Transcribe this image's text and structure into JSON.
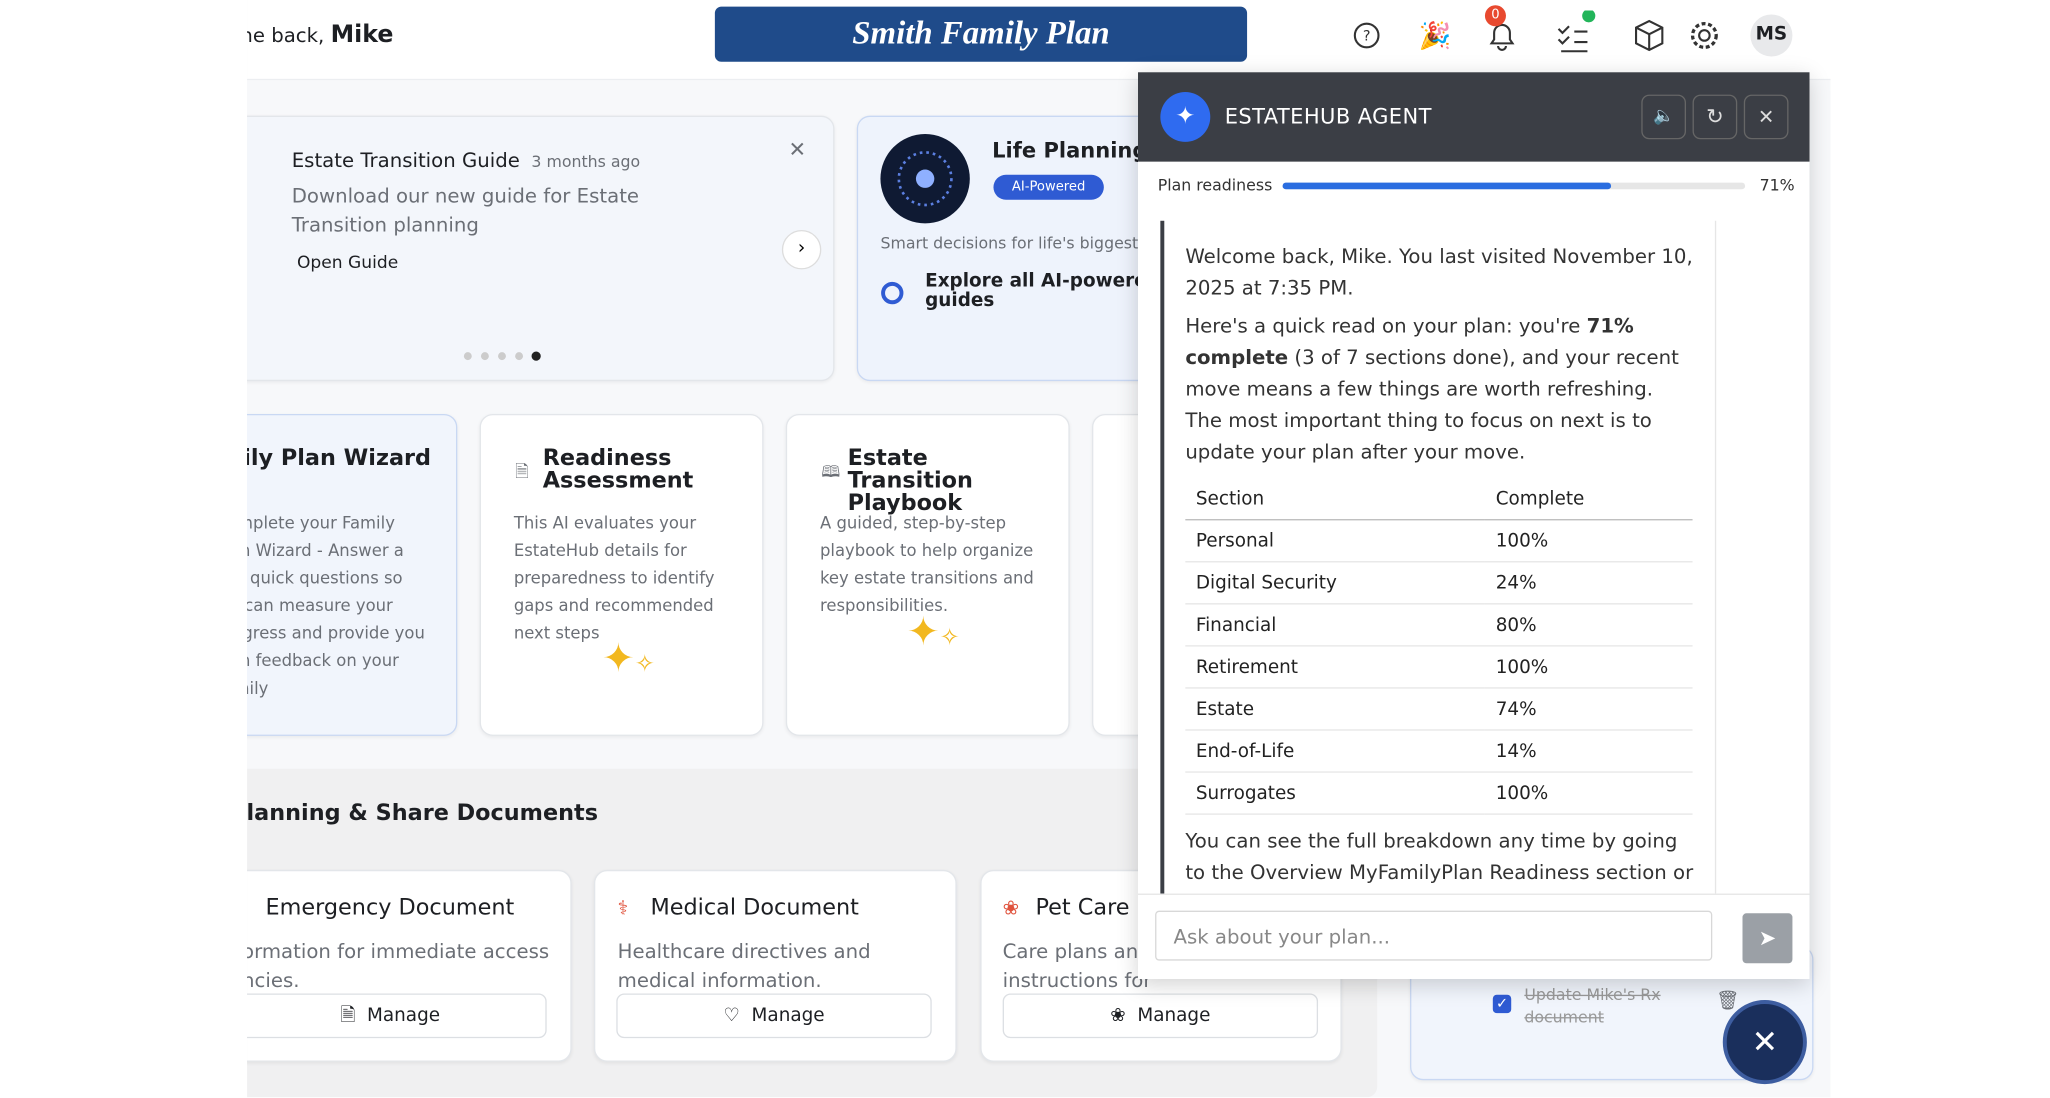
{
  "header": {
    "greeting": "Welcome back,",
    "user": "Mike",
    "plan_title": "Smith Family Plan",
    "notification_count": "0",
    "avatar": "MS"
  },
  "announcement": {
    "title": "Estate Transition Guide",
    "time": "3 months ago",
    "body": "Download our new guide for Estate Transition planning",
    "link": "Open Guide"
  },
  "life_planning": {
    "title": "Life Planning Guides",
    "badge": "AI-Powered",
    "subtitle": "Smart decisions for life's biggest moments",
    "link": "Explore all AI-powered guides"
  },
  "cards": [
    {
      "title": "Family Plan Wizard",
      "body": "Complete your Family Plan Wizard - Answer a few quick questions so we can measure your progress and provide you with feedback on your Family"
    },
    {
      "title": "Readiness Assessment",
      "body": "This AI evaluates your EstateHub details for preparedness to identify gaps and recommended next steps"
    },
    {
      "title": "Estate Transition Playbook",
      "body": "A guided, step-by-step playbook to help organize key estate transitions and responsibilities."
    }
  ],
  "section": {
    "title": "Emergency Planning & Share Documents"
  },
  "documents": [
    {
      "title": "Emergency Document",
      "body": "Critical information for immediate access in emergencies.",
      "button": "Manage"
    },
    {
      "title": "Medical Document",
      "body": "Healthcare directives and medical information.",
      "button": "Manage"
    },
    {
      "title": "Pet Care Instructions",
      "body": "Care plans and instructions for your pets.",
      "button": "Manage"
    }
  ],
  "todo": {
    "item": "Update Mike's Rx document"
  },
  "agent": {
    "title": "ESTATEHUB AGENT",
    "readiness_label": "Plan readiness",
    "readiness": {
      "value": 71,
      "label": "71%"
    },
    "message_1": "Welcome back, Mike. You last visited November 10, 2025 at 7:35 PM.",
    "message_2": {
      "before": "Here's a quick read on your plan: you're ",
      "bold": "71% complete",
      "after": " (3 of 7 sections done), and your recent move means a few things are worth refreshing. The most important thing to focus on next is to update your plan after your move."
    },
    "table": {
      "header": [
        "Section",
        "Complete"
      ],
      "rows": [
        [
          "Personal",
          "100%"
        ],
        [
          "Digital Security",
          "24%"
        ],
        [
          "Financial",
          "80%"
        ],
        [
          "Retirement",
          "100%"
        ],
        [
          "Estate",
          "74%"
        ],
        [
          "End-of-Life",
          "14%"
        ],
        [
          "Surrogates",
          "100%"
        ]
      ]
    },
    "message_3": "You can see the full breakdown any time by going to the Overview MyFamilyPlan Readiness section or",
    "input_placeholder": "Ask about your plan..."
  }
}
